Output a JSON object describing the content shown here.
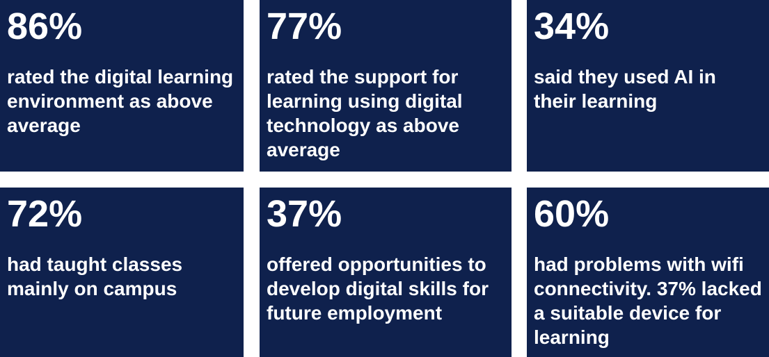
{
  "tiles": [
    {
      "stat": "86%",
      "text": "rated the digital learning environment as above average"
    },
    {
      "stat": "77%",
      "text": "rated the support for learning using digital technology as above average"
    },
    {
      "stat": "34%",
      "text": "said they used AI in their learning"
    },
    {
      "stat": "72%",
      "text": "had taught classes mainly on campus"
    },
    {
      "stat": "37%",
      "text": "offered opportunities to develop digital skills for future employment"
    },
    {
      "stat": "60%",
      "text": "had problems with wifi connectivity. 37% lacked a suitable device for learning"
    }
  ],
  "colors": {
    "tile_background": "#0f214d",
    "text": "#ffffff",
    "page_background": "#ffffff"
  }
}
